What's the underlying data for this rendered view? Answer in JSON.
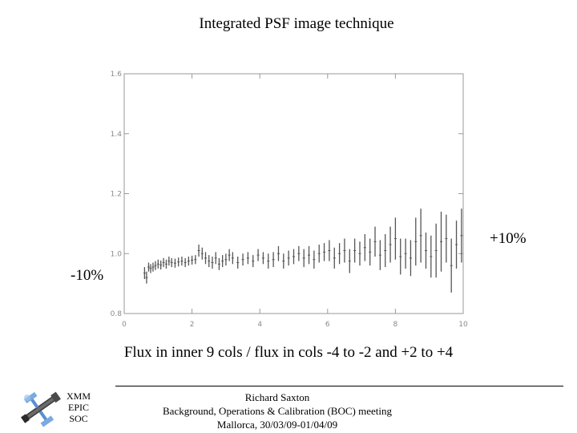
{
  "slide": {
    "title": "Integrated PSF image technique",
    "caption": "Flux in inner 9 cols  /  flux in cols -4 to -2 and +2 to +4"
  },
  "annotations": {
    "plus": "+10%",
    "minus": "-10%"
  },
  "footer": {
    "org_lines": [
      "XMM",
      "EPIC",
      "SOC"
    ],
    "author": "Richard Saxton",
    "meeting": "Background, Operations & Calibration (BOC) meeting",
    "venue_dates": "Mallorca, 30/03/09-01/04/09"
  },
  "colors": {
    "plot_line": "#555555",
    "axis": "#9a9a9a",
    "text": "#000000"
  },
  "chart_data": {
    "type": "errorbar",
    "title": "",
    "xlabel": "",
    "ylabel": "",
    "xlim": [
      0,
      10
    ],
    "ylim": [
      0.8,
      1.6
    ],
    "x_ticks": [
      0,
      2,
      4,
      6,
      8,
      10
    ],
    "x_tick_labels": [
      "0",
      "2",
      "4",
      "6",
      "8",
      "10"
    ],
    "y_ticks": [
      0.8,
      1.0,
      1.2,
      1.4,
      1.6
    ],
    "y_tick_labels": [
      "0.8",
      "1.0",
      "1.2",
      "1.4",
      "1.6"
    ],
    "grid": false,
    "series": [
      {
        "x": [
          0.6,
          0.66,
          0.72,
          0.78,
          0.85,
          0.92,
          1.0,
          1.08,
          1.16,
          1.24,
          1.32,
          1.4,
          1.5,
          1.6,
          1.7,
          1.8,
          1.9,
          2.0,
          2.1,
          2.2,
          2.3,
          2.4,
          2.5,
          2.6,
          2.7,
          2.8,
          2.9,
          3.0,
          3.1,
          3.2,
          3.35,
          3.5,
          3.65,
          3.8,
          3.95,
          4.1,
          4.25,
          4.4,
          4.55,
          4.7,
          4.85,
          5.0,
          5.15,
          5.3,
          5.45,
          5.6,
          5.75,
          5.9,
          6.05,
          6.2,
          6.35,
          6.5,
          6.65,
          6.8,
          6.95,
          7.1,
          7.25,
          7.4,
          7.55,
          7.7,
          7.85,
          8.0,
          8.15,
          8.3,
          8.45,
          8.6,
          8.75,
          8.9,
          9.05,
          9.2,
          9.35,
          9.5,
          9.65,
          9.8,
          9.95
        ],
        "y": [
          0.935,
          0.92,
          0.955,
          0.95,
          0.955,
          0.96,
          0.965,
          0.962,
          0.97,
          0.965,
          0.975,
          0.97,
          0.968,
          0.972,
          0.975,
          0.97,
          0.975,
          0.978,
          0.98,
          1.01,
          1.0,
          0.985,
          0.975,
          0.97,
          0.985,
          0.965,
          0.975,
          0.98,
          0.995,
          0.985,
          0.97,
          0.98,
          0.985,
          0.975,
          0.995,
          0.985,
          0.975,
          0.98,
          1.0,
          0.975,
          0.985,
          0.99,
          1.0,
          0.985,
          0.995,
          0.98,
          1.0,
          1.005,
          1.01,
          0.985,
          1.0,
          1.01,
          0.975,
          1.01,
          1.0,
          1.02,
          1.005,
          1.04,
          0.995,
          1.01,
          1.03,
          1.05,
          0.99,
          1.0,
          0.985,
          1.04,
          1.06,
          1.01,
          0.99,
          1.01,
          1.04,
          1.05,
          0.96,
          1.03,
          1.06
        ],
        "err": [
          0.02,
          0.02,
          0.015,
          0.015,
          0.015,
          0.015,
          0.015,
          0.015,
          0.015,
          0.015,
          0.015,
          0.015,
          0.015,
          0.015,
          0.015,
          0.015,
          0.015,
          0.015,
          0.015,
          0.02,
          0.02,
          0.02,
          0.02,
          0.02,
          0.02,
          0.02,
          0.02,
          0.02,
          0.02,
          0.02,
          0.02,
          0.02,
          0.02,
          0.02,
          0.02,
          0.02,
          0.025,
          0.025,
          0.025,
          0.025,
          0.025,
          0.025,
          0.025,
          0.03,
          0.03,
          0.03,
          0.03,
          0.03,
          0.035,
          0.035,
          0.035,
          0.04,
          0.04,
          0.04,
          0.04,
          0.045,
          0.045,
          0.05,
          0.05,
          0.055,
          0.06,
          0.07,
          0.06,
          0.05,
          0.06,
          0.08,
          0.09,
          0.06,
          0.07,
          0.09,
          0.1,
          0.08,
          0.09,
          0.08,
          0.09
        ]
      }
    ]
  }
}
